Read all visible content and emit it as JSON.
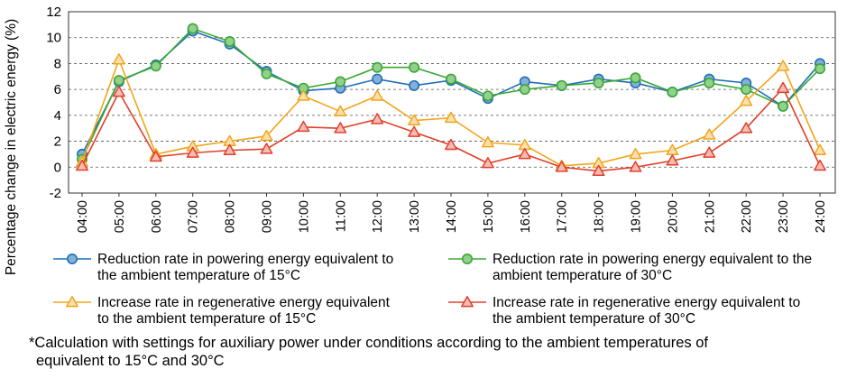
{
  "chart_data": {
    "type": "line",
    "ylabel": "Percentage change in electric energy (%)",
    "ylim": [
      -2,
      12
    ],
    "yticks": [
      -2,
      0,
      2,
      4,
      6,
      8,
      10,
      12
    ],
    "grid": "horizontal dashed",
    "legend_position": "bottom",
    "categories": [
      "04:00",
      "05:00",
      "06:00",
      "07:00",
      "08:00",
      "09:00",
      "10:00",
      "11:00",
      "12:00",
      "13:00",
      "14:00",
      "15:00",
      "16:00",
      "17:00",
      "18:00",
      "19:00",
      "20:00",
      "21:00",
      "22:00",
      "23:00",
      "24:00"
    ],
    "series": [
      {
        "name_line1": "Reduction rate in powering energy equivalent to",
        "name_line2": "the ambient temperature of 15°C",
        "color": "#1f6fb8",
        "marker": "circle",
        "values": [
          1.0,
          6.6,
          7.9,
          10.5,
          9.5,
          7.4,
          5.9,
          6.1,
          6.8,
          6.3,
          6.7,
          5.3,
          6.6,
          6.3,
          6.8,
          6.5,
          5.8,
          6.8,
          6.5,
          4.7,
          8.0
        ]
      },
      {
        "name_line1": "Reduction rate in powering energy equivalent to the",
        "name_line2": "ambient temperature of 30°C",
        "color": "#3aa832",
        "marker": "circle",
        "values": [
          0.6,
          6.7,
          7.8,
          10.7,
          9.7,
          7.2,
          6.1,
          6.6,
          7.7,
          7.7,
          6.8,
          5.5,
          6.0,
          6.3,
          6.5,
          6.9,
          5.8,
          6.5,
          6.0,
          4.7,
          7.6
        ]
      },
      {
        "name_line1": "Increase rate in regenerative energy equivalent",
        "name_line2": "to the ambient temperature of 15°C",
        "color": "#f2a51a",
        "marker": "triangle",
        "values": [
          0.4,
          8.3,
          1.0,
          1.6,
          2.0,
          2.4,
          5.5,
          4.3,
          5.5,
          3.6,
          3.8,
          1.9,
          1.7,
          0.1,
          0.3,
          1.0,
          1.3,
          2.5,
          5.1,
          7.8,
          1.3
        ]
      },
      {
        "name_line1": "Increase rate in regenerative energy equivalent to",
        "name_line2": "the ambient temperature of 30°C",
        "color": "#e0402a",
        "marker": "triangle",
        "values": [
          0.1,
          5.8,
          0.8,
          1.1,
          1.3,
          1.4,
          3.1,
          3.0,
          3.7,
          2.7,
          1.7,
          0.3,
          1.0,
          0.0,
          -0.3,
          0.0,
          0.5,
          1.1,
          3.0,
          6.1,
          0.1
        ]
      }
    ]
  },
  "footnote": {
    "line1": "*Calculation with settings for auxiliary power under conditions according to the ambient temperatures of",
    "line2": "equivalent to 15°C and 30°C"
  }
}
